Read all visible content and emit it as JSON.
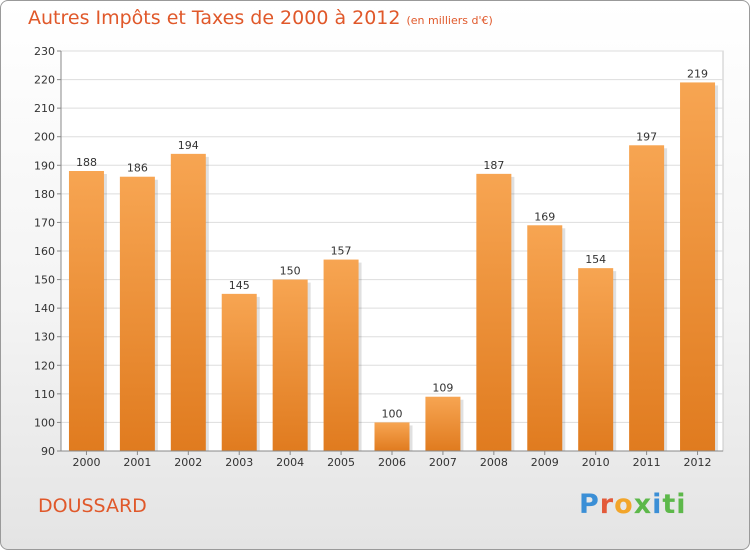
{
  "title": "Autres Impôts et Taxes de 2000 à 2012",
  "unit": "(en milliers d'€)",
  "commune": "DOUSSARD",
  "logo": {
    "p1": "P",
    "p2": "r",
    "p3": "o",
    "p4": "x",
    "p5": "i",
    "p6": "ti"
  },
  "colors": {
    "bar_top": "#f7a552",
    "bar_bottom": "#e07b1f",
    "title": "#e0582a"
  },
  "chart_data": {
    "type": "bar",
    "categories": [
      "2000",
      "2001",
      "2002",
      "2003",
      "2004",
      "2005",
      "2006",
      "2007",
      "2008",
      "2009",
      "2010",
      "2011",
      "2012"
    ],
    "values": [
      188,
      186,
      194,
      145,
      150,
      157,
      100,
      109,
      187,
      169,
      154,
      197,
      219
    ],
    "ylim": [
      90,
      230
    ],
    "yticks": [
      90,
      100,
      110,
      120,
      130,
      140,
      150,
      160,
      170,
      180,
      190,
      200,
      210,
      220,
      230
    ],
    "grid": true,
    "legend": "none"
  }
}
